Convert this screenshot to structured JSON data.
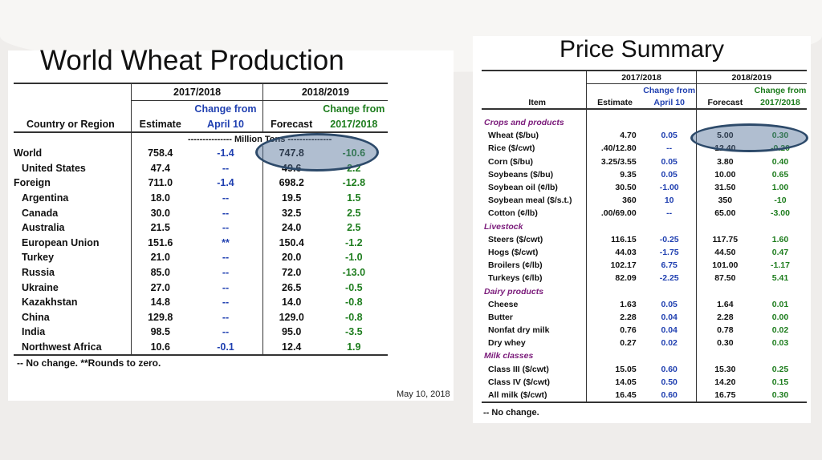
{
  "left": {
    "title": "World Wheat Production",
    "header": {
      "group1": "2017/2018",
      "group2": "2018/2019",
      "col0": "Country or Region",
      "col1": "Estimate",
      "col2_line1": "Change from",
      "col2_line2": "April 10",
      "col3": "Forecast",
      "col4_line1": "Change from",
      "col4_line2": "2017/2018",
      "unit": "--------------- Million Tons ---------------"
    },
    "rows": [
      [
        "World",
        "758.4",
        "-1.4",
        "747.8",
        "-10.6"
      ],
      [
        "United States",
        "47.4",
        "--",
        "49.6",
        "2.2"
      ],
      [
        "Foreign",
        "711.0",
        "-1.4",
        "698.2",
        "-12.8"
      ],
      [
        "Argentina",
        "18.0",
        "--",
        "19.5",
        "1.5"
      ],
      [
        "Canada",
        "30.0",
        "--",
        "32.5",
        "2.5"
      ],
      [
        "Australia",
        "21.5",
        "--",
        "24.0",
        "2.5"
      ],
      [
        "European Union",
        "151.6",
        "**",
        "150.4",
        "-1.2"
      ],
      [
        "Turkey",
        "21.0",
        "--",
        "20.0",
        "-1.0"
      ],
      [
        "Russia",
        "85.0",
        "--",
        "72.0",
        "-13.0"
      ],
      [
        "Ukraine",
        "27.0",
        "--",
        "26.5",
        "-0.5"
      ],
      [
        "Kazakhstan",
        "14.8",
        "--",
        "14.0",
        "-0.8"
      ],
      [
        "China",
        "129.8",
        "--",
        "129.0",
        "-0.8"
      ],
      [
        "India",
        "98.5",
        "--",
        "95.0",
        "-3.5"
      ],
      [
        "Northwest Africa",
        "10.6",
        "-0.1",
        "12.4",
        "1.9"
      ]
    ],
    "footnote": "-- No change.   **Rounds to zero.",
    "date": "May 10, 2018"
  },
  "right": {
    "title": "Price Summary",
    "header": {
      "group1": "2017/2018",
      "group2": "2018/2019",
      "col0": "Item",
      "col1": "Estimate",
      "col2_line1": "Change from",
      "col2_line2": "April 10",
      "col3": "Forecast",
      "col4_line1": "Change from",
      "col4_line2": "2017/2018"
    },
    "sections": [
      {
        "label": "Crops and products",
        "rows": [
          [
            "Wheat ($/bu)",
            "4.70",
            "0.05",
            "5.00",
            "0.30"
          ],
          [
            "Rice ($/cwt)",
            ".40/12.80",
            "--",
            "12.40",
            "-0.20"
          ],
          [
            "Corn ($/bu)",
            "3.25/3.55",
            "0.05",
            "3.80",
            "0.40"
          ],
          [
            "Soybeans ($/bu)",
            "9.35",
            "0.05",
            "10.00",
            "0.65"
          ],
          [
            "Soybean oil (¢/lb)",
            "30.50",
            "-1.00",
            "31.50",
            "1.00"
          ],
          [
            "Soybean meal ($/s.t.)",
            "360",
            "10",
            "350",
            "-10"
          ],
          [
            "Cotton (¢/lb)",
            ".00/69.00",
            "--",
            "65.00",
            "-3.00"
          ]
        ]
      },
      {
        "label": "Livestock",
        "rows": [
          [
            "Steers ($/cwt)",
            "116.15",
            "-0.25",
            "117.75",
            "1.60"
          ],
          [
            "Hogs ($/cwt)",
            "44.03",
            "-1.75",
            "44.50",
            "0.47"
          ],
          [
            "Broilers (¢/lb)",
            "102.17",
            "6.75",
            "101.00",
            "-1.17"
          ],
          [
            "Turkeys (¢/lb)",
            "82.09",
            "-2.25",
            "87.50",
            "5.41"
          ]
        ]
      },
      {
        "label": "Dairy products",
        "rows": [
          [
            "Cheese",
            "1.63",
            "0.05",
            "1.64",
            "0.01"
          ],
          [
            "Butter",
            "2.28",
            "0.04",
            "2.28",
            "0.00"
          ],
          [
            "Nonfat dry milk",
            "0.76",
            "0.04",
            "0.78",
            "0.02"
          ],
          [
            "Dry whey",
            "0.27",
            "0.02",
            "0.30",
            "0.03"
          ]
        ]
      },
      {
        "label": "Milk classes",
        "rows": [
          [
            "Class III ($/cwt)",
            "15.05",
            "0.60",
            "15.30",
            "0.25"
          ],
          [
            "Class IV ($/cwt)",
            "14.05",
            "0.50",
            "14.20",
            "0.15"
          ],
          [
            "All milk ($/cwt)",
            "16.45",
            "0.60",
            "16.75",
            "0.30"
          ]
        ]
      }
    ],
    "footnote": "-- No change."
  },
  "colors": {
    "change_april": "#1f3fb0",
    "change_year": "#1e7d1e",
    "section": "#7a1a7a",
    "highlight": "#2d4a6a"
  }
}
